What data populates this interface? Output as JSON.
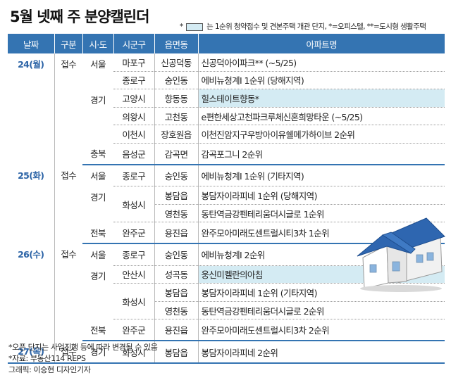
{
  "title": "5월 넷째 주 분양캘린더",
  "legend": {
    "prefix": "*",
    "text": "는 1순위 청약접수 및 견본주택 개관 단지, *=오피스텔, **=도시형 생활주택"
  },
  "headers": [
    "날짜",
    "구분",
    "시·도",
    "시군구",
    "읍면동",
    "아파트명"
  ],
  "rows": [
    {
      "date": "24(월)",
      "date_span": 6,
      "type": "접수",
      "type_span": 6,
      "city": "서울",
      "city_span": 2,
      "gu": "마포구",
      "gu_span": 1,
      "dong": "신공덕동",
      "apt": "신공덕아이파크** (~5/25)",
      "hl": false
    },
    {
      "gu": "종로구",
      "gu_span": 1,
      "dong": "숭인동",
      "apt": "에비뉴청계Ⅰ 1순위 (당해지역)",
      "hl": false
    },
    {
      "city": "경기",
      "city_span": 3,
      "gu": "고양시",
      "gu_span": 1,
      "dong": "향동동",
      "apt": "힐스테이트향동*",
      "hl": true
    },
    {
      "gu": "의왕시",
      "gu_span": 1,
      "dong": "고천동",
      "apt": "e편한세상고천파크루체신혼희망타운 (~5/25)",
      "hl": false
    },
    {
      "gu": "이천시",
      "gu_span": 1,
      "dong": "장호원읍",
      "apt": "이천진암지구우방아이유쉘메가하이브 2순위",
      "hl": false
    },
    {
      "city": "충북",
      "city_span": 1,
      "gu": "음성군",
      "gu_span": 1,
      "dong": "감곡면",
      "apt": "감곡포그니 2순위",
      "hl": false,
      "end": true
    },
    {
      "date": "25(화)",
      "date_span": 4,
      "type": "접수",
      "type_span": 4,
      "city": "서울",
      "city_span": 1,
      "gu": "종로구",
      "gu_span": 1,
      "dong": "숭인동",
      "apt": "에비뉴청계Ⅰ 1순위 (기타지역)",
      "hl": false
    },
    {
      "city": "경기",
      "city_span": 2,
      "gu": "화성시",
      "gu_span": 2,
      "dong": "봉담읍",
      "apt": "봉담자이라피네 1순위 (당해지역)",
      "hl": false
    },
    {
      "dong": "영천동",
      "apt": "동탄역금강펜테리움더시글로 1순위",
      "hl": false
    },
    {
      "city": "전북",
      "city_span": 1,
      "gu": "완주군",
      "gu_span": 1,
      "dong": "용진읍",
      "apt": "완주모아미래도센트럴시티3차 1순위",
      "hl": false,
      "end": true
    },
    {
      "date": "26(수)",
      "date_span": 5,
      "type": "접수",
      "type_span": 5,
      "city": "서울",
      "city_span": 1,
      "gu": "종로구",
      "gu_span": 1,
      "dong": "숭인동",
      "apt": "에비뉴청계Ⅰ 2순위",
      "hl": false
    },
    {
      "city": "경기",
      "city_span": 3,
      "gu": "안산시",
      "gu_span": 1,
      "dong": "성곡동",
      "apt": "웅신미켈란의아침",
      "hl": true
    },
    {
      "gu": "화성시",
      "gu_span": 2,
      "dong": "봉담읍",
      "apt": "봉담자이라피네 1순위 (기타지역)",
      "hl": false
    },
    {
      "dong": "영천동",
      "apt": "동탄역금강펜테리움더시글로 2순위",
      "hl": false
    },
    {
      "city": "전북",
      "city_span": 1,
      "gu": "완주군",
      "gu_span": 1,
      "dong": "용진읍",
      "apt": "완주모아미래도센트럴시티3차 2순위",
      "hl": false,
      "end": true
    },
    {
      "date": "27(목)",
      "date_span": 1,
      "type": "접수",
      "type_span": 1,
      "city": "경기",
      "city_span": 1,
      "gu": "화성시",
      "gu_span": 1,
      "dong": "봉담읍",
      "apt": "봉담자이라피네 2순위",
      "hl": false,
      "end": true
    }
  ],
  "notes": [
    "*오픈 단지는 사업진행 등에 따라 변경될 수 있음",
    "*자료: 부동산114 REPS",
    "그래픽: 이승현 디자인기자"
  ],
  "colors": {
    "header_bg": "#3474b2",
    "highlight": "#d4ebf3",
    "date_text": "#2b63a6",
    "roof": "#2e66b0"
  },
  "illustration_icon": "house-icon"
}
